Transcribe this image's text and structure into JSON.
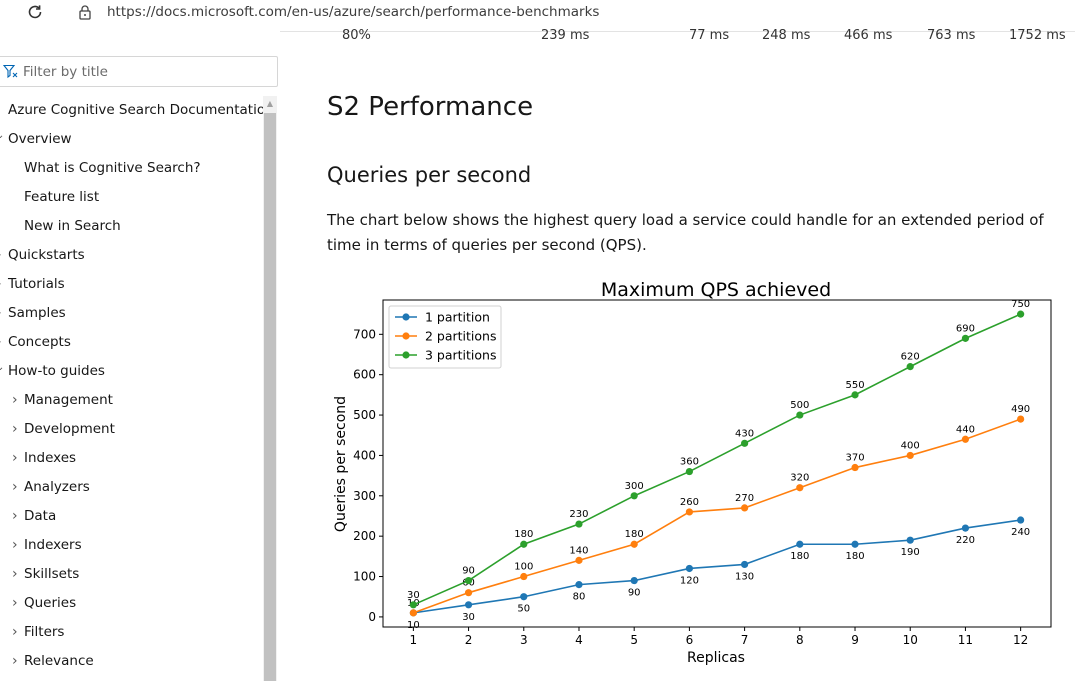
{
  "browser": {
    "url": "https://docs.microsoft.com/en-us/azure/search/performance-benchmarks"
  },
  "sidebar": {
    "filter_placeholder": "Filter by title",
    "items": [
      {
        "label": "Azure Cognitive Search Documentation",
        "level": 0,
        "chevron": ""
      },
      {
        "label": "Overview",
        "level": 0,
        "chevron": "expanded"
      },
      {
        "label": "What is Cognitive Search?",
        "level": 1,
        "chevron": ""
      },
      {
        "label": "Feature list",
        "level": 1,
        "chevron": ""
      },
      {
        "label": "New in Search",
        "level": 1,
        "chevron": ""
      },
      {
        "label": "Quickstarts",
        "level": 0,
        "chevron": "collapsed"
      },
      {
        "label": "Tutorials",
        "level": 0,
        "chevron": "collapsed"
      },
      {
        "label": "Samples",
        "level": 0,
        "chevron": "collapsed"
      },
      {
        "label": "Concepts",
        "level": 0,
        "chevron": "collapsed"
      },
      {
        "label": "How-to guides",
        "level": 0,
        "chevron": "expanded"
      },
      {
        "label": "Management",
        "level": 1,
        "chevron": "collapsed"
      },
      {
        "label": "Development",
        "level": 1,
        "chevron": "collapsed"
      },
      {
        "label": "Indexes",
        "level": 1,
        "chevron": "collapsed"
      },
      {
        "label": "Analyzers",
        "level": 1,
        "chevron": "collapsed"
      },
      {
        "label": "Data",
        "level": 1,
        "chevron": "collapsed"
      },
      {
        "label": "Indexers",
        "level": 1,
        "chevron": "collapsed"
      },
      {
        "label": "Skillsets",
        "level": 1,
        "chevron": "collapsed"
      },
      {
        "label": "Queries",
        "level": 1,
        "chevron": "collapsed"
      },
      {
        "label": "Filters",
        "level": 1,
        "chevron": "collapsed"
      },
      {
        "label": "Relevance",
        "level": 1,
        "chevron": "collapsed"
      }
    ]
  },
  "main": {
    "table_row": [
      "80%",
      "239 ms",
      "77 ms",
      "248 ms",
      "466 ms",
      "763 ms",
      "1752 ms"
    ],
    "heading": "S2 Performance",
    "subheading": "Queries per second",
    "paragraph": "The chart below shows the highest query load a service could handle for an extended period of time in terms of queries per second (QPS)."
  },
  "chart_data": {
    "type": "line",
    "title": "Maximum QPS achieved",
    "xlabel": "Replicas",
    "ylabel": "Queries per second",
    "x": [
      1,
      2,
      3,
      4,
      5,
      6,
      7,
      8,
      9,
      10,
      11,
      12
    ],
    "xlim": [
      0.45,
      12.55
    ],
    "ylim": [
      -25,
      785
    ],
    "yticks": [
      0,
      100,
      200,
      300,
      400,
      500,
      600,
      700
    ],
    "legend_position": "top-left",
    "grid": false,
    "series": [
      {
        "name": "1 partition",
        "color": "#1f77b4",
        "values": [
          10,
          30,
          50,
          80,
          90,
          120,
          130,
          180,
          180,
          190,
          220,
          240
        ],
        "label_position": "below"
      },
      {
        "name": "2 partitions",
        "color": "#ff7f0e",
        "values": [
          10,
          60,
          100,
          140,
          180,
          260,
          270,
          320,
          370,
          400,
          440,
          490
        ],
        "label_position": "above"
      },
      {
        "name": "3 partitions",
        "color": "#2ca02c",
        "values": [
          30,
          90,
          180,
          230,
          300,
          360,
          430,
          500,
          550,
          620,
          690,
          750
        ],
        "label_position": "above"
      }
    ]
  }
}
